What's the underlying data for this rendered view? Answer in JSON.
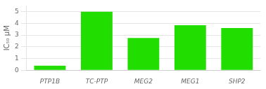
{
  "chart_data": {
    "type": "bar",
    "categories": [
      "PTP1B",
      "TC-PTP",
      "MEG2",
      "MEG1",
      "SHP2"
    ],
    "values": [
      0.38,
      5.0,
      2.75,
      3.85,
      3.6
    ],
    "color": "#22dd00",
    "ylabel": "IC₅₀ μM",
    "ylim": [
      0,
      5.5
    ],
    "yticks": [
      0,
      1,
      2,
      3,
      4,
      5
    ],
    "grid": true
  }
}
